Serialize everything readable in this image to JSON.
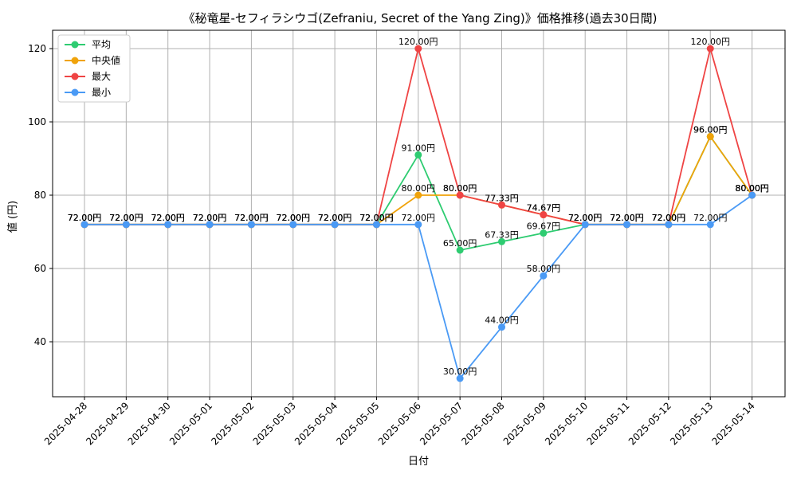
{
  "chart_data": {
    "type": "line",
    "title": "《秘竜星-セフィラシウゴ(Zefraniu, Secret of the Yang Zing)》価格推移(過去30日間)",
    "xlabel": "日付",
    "ylabel": "値 (円)",
    "categories": [
      "2025-04-28",
      "2025-04-29",
      "2025-04-30",
      "2025-05-01",
      "2025-05-02",
      "2025-05-03",
      "2025-05-04",
      "2025-05-05",
      "2025-05-06",
      "2025-05-07",
      "2025-05-08",
      "2025-05-09",
      "2025-05-10",
      "2025-05-11",
      "2025-05-12",
      "2025-05-13",
      "2025-05-14"
    ],
    "ylim": [
      25,
      125
    ],
    "yticks": [
      40,
      60,
      80,
      100,
      120
    ],
    "grid": true,
    "legend_position": "top-left",
    "unit_suffix": "円",
    "series": [
      {
        "name": "平均",
        "color": "#2ecc71",
        "values": [
          72,
          72,
          72,
          72,
          72,
          72,
          72,
          72,
          91,
          65,
          67.33,
          69.67,
          72,
          72,
          72,
          96,
          80
        ]
      },
      {
        "name": "中央値",
        "color": "#f0a30a",
        "values": [
          72,
          72,
          72,
          72,
          72,
          72,
          72,
          72,
          80,
          80,
          77.33,
          74.67,
          72,
          72,
          72,
          96,
          80
        ]
      },
      {
        "name": "最大",
        "color": "#ef4444",
        "values": [
          72,
          72,
          72,
          72,
          72,
          72,
          72,
          72,
          120,
          80,
          77.33,
          74.67,
          72,
          72,
          72,
          120,
          80
        ]
      },
      {
        "name": "最小",
        "color": "#4a9af5",
        "values": [
          72,
          72,
          72,
          72,
          72,
          72,
          72,
          72,
          72,
          30,
          44,
          58,
          72,
          72,
          72,
          72,
          80
        ]
      }
    ]
  }
}
